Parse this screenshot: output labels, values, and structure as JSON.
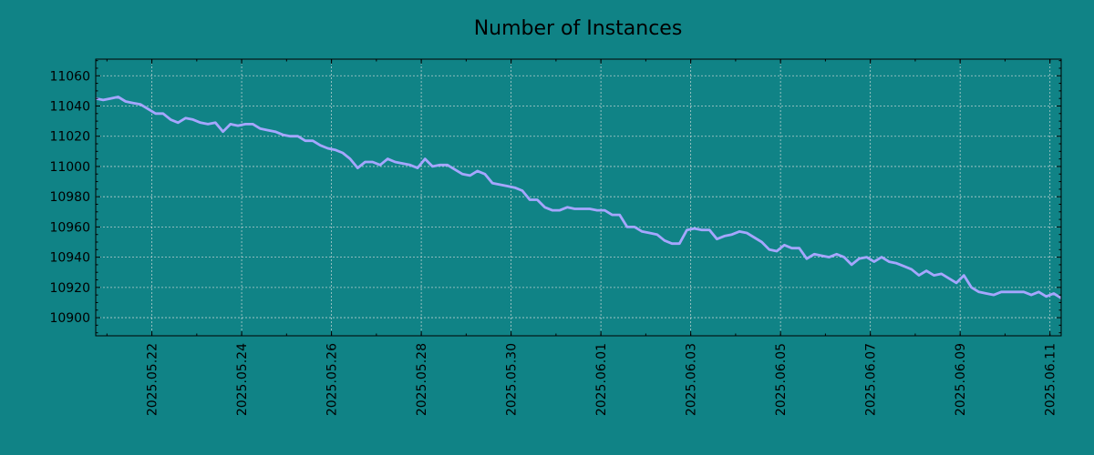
{
  "colors": {
    "background": "#108386",
    "line": "#a6a6ff",
    "grid": "#c8d6d6",
    "text": "#000000"
  },
  "chart_data": {
    "type": "line",
    "title": "Number of Instances",
    "xlabel": "",
    "ylabel": "",
    "x_axis": {
      "type": "date",
      "range": [
        "2025-05-20T18:00",
        "2025-06-11T06:00"
      ],
      "ticks": [
        "2025-05-22",
        "2025-05-24",
        "2025-05-26",
        "2025-05-28",
        "2025-05-30",
        "2025-06-01",
        "2025-06-03",
        "2025-06-05",
        "2025-06-07",
        "2025-06-09",
        "2025-06-11"
      ],
      "tick_labels": [
        "2025.05.22",
        "2025.05.24",
        "2025.05.26",
        "2025.05.28",
        "2025.05.30",
        "2025.06.01",
        "2025.06.03",
        "2025.06.05",
        "2025.06.07",
        "2025.06.09",
        "2025.06.11"
      ]
    },
    "y_axis": {
      "range": [
        10888,
        11071
      ],
      "ticks": [
        10900,
        10920,
        10940,
        10960,
        10980,
        11000,
        11020,
        11040,
        11060
      ],
      "tick_labels": [
        "10900",
        "10920",
        "10940",
        "10960",
        "10980",
        "11000",
        "11020",
        "11040",
        "11060"
      ]
    },
    "grid": true,
    "series": [
      {
        "color": "#a6a6ff",
        "points": [
          [
            "2025-05-20T18:00",
            11045
          ],
          [
            "2025-05-20T22:00",
            11044
          ],
          [
            "2025-05-21T02:00",
            11045
          ],
          [
            "2025-05-21T06:00",
            11046
          ],
          [
            "2025-05-21T10:00",
            11043
          ],
          [
            "2025-05-21T14:00",
            11042
          ],
          [
            "2025-05-21T18:00",
            11041
          ],
          [
            "2025-05-21T22:00",
            11038
          ],
          [
            "2025-05-22T02:00",
            11035
          ],
          [
            "2025-05-22T06:00",
            11035
          ],
          [
            "2025-05-22T10:00",
            11031
          ],
          [
            "2025-05-22T14:00",
            11029
          ],
          [
            "2025-05-22T18:00",
            11032
          ],
          [
            "2025-05-22T22:00",
            11031
          ],
          [
            "2025-05-23T02:00",
            11029
          ],
          [
            "2025-05-23T06:00",
            11028
          ],
          [
            "2025-05-23T10:00",
            11029
          ],
          [
            "2025-05-23T14:00",
            11023
          ],
          [
            "2025-05-23T18:00",
            11028
          ],
          [
            "2025-05-23T22:00",
            11027
          ],
          [
            "2025-05-24T02:00",
            11028
          ],
          [
            "2025-05-24T06:00",
            11028
          ],
          [
            "2025-05-24T10:00",
            11025
          ],
          [
            "2025-05-24T14:00",
            11024
          ],
          [
            "2025-05-24T18:00",
            11023
          ],
          [
            "2025-05-24T22:00",
            11021
          ],
          [
            "2025-05-25T02:00",
            11020
          ],
          [
            "2025-05-25T06:00",
            11020
          ],
          [
            "2025-05-25T10:00",
            11017
          ],
          [
            "2025-05-25T14:00",
            11017
          ],
          [
            "2025-05-25T18:00",
            11014
          ],
          [
            "2025-05-25T22:00",
            11012
          ],
          [
            "2025-05-26T02:00",
            11011
          ],
          [
            "2025-05-26T06:00",
            11009
          ],
          [
            "2025-05-26T10:00",
            11005
          ],
          [
            "2025-05-26T14:00",
            10999
          ],
          [
            "2025-05-26T18:00",
            11003
          ],
          [
            "2025-05-26T22:00",
            11003
          ],
          [
            "2025-05-27T02:00",
            11001
          ],
          [
            "2025-05-27T06:00",
            11005
          ],
          [
            "2025-05-27T10:00",
            11003
          ],
          [
            "2025-05-27T14:00",
            11002
          ],
          [
            "2025-05-27T18:00",
            11001
          ],
          [
            "2025-05-27T22:00",
            10999
          ],
          [
            "2025-05-28T02:00",
            11005
          ],
          [
            "2025-05-28T06:00",
            11000
          ],
          [
            "2025-05-28T10:00",
            11001
          ],
          [
            "2025-05-28T14:00",
            11001
          ],
          [
            "2025-05-28T18:00",
            10998
          ],
          [
            "2025-05-28T22:00",
            10995
          ],
          [
            "2025-05-29T02:00",
            10994
          ],
          [
            "2025-05-29T06:00",
            10997
          ],
          [
            "2025-05-29T10:00",
            10995
          ],
          [
            "2025-05-29T14:00",
            10989
          ],
          [
            "2025-05-29T18:00",
            10988
          ],
          [
            "2025-05-29T22:00",
            10987
          ],
          [
            "2025-05-30T02:00",
            10986
          ],
          [
            "2025-05-30T06:00",
            10984
          ],
          [
            "2025-05-30T10:00",
            10978
          ],
          [
            "2025-05-30T14:00",
            10978
          ],
          [
            "2025-05-30T18:00",
            10973
          ],
          [
            "2025-05-30T22:00",
            10971
          ],
          [
            "2025-05-31T02:00",
            10971
          ],
          [
            "2025-05-31T06:00",
            10973
          ],
          [
            "2025-05-31T10:00",
            10972
          ],
          [
            "2025-05-31T14:00",
            10972
          ],
          [
            "2025-05-31T18:00",
            10972
          ],
          [
            "2025-05-31T22:00",
            10971
          ],
          [
            "2025-06-01T02:00",
            10971
          ],
          [
            "2025-06-01T06:00",
            10968
          ],
          [
            "2025-06-01T10:00",
            10968
          ],
          [
            "2025-06-01T14:00",
            10960
          ],
          [
            "2025-06-01T18:00",
            10960
          ],
          [
            "2025-06-01T22:00",
            10957
          ],
          [
            "2025-06-02T02:00",
            10956
          ],
          [
            "2025-06-02T06:00",
            10955
          ],
          [
            "2025-06-02T10:00",
            10951
          ],
          [
            "2025-06-02T14:00",
            10949
          ],
          [
            "2025-06-02T18:00",
            10949
          ],
          [
            "2025-06-02T22:00",
            10958
          ],
          [
            "2025-06-03T02:00",
            10959
          ],
          [
            "2025-06-03T06:00",
            10958
          ],
          [
            "2025-06-03T10:00",
            10958
          ],
          [
            "2025-06-03T14:00",
            10952
          ],
          [
            "2025-06-03T18:00",
            10954
          ],
          [
            "2025-06-03T22:00",
            10955
          ],
          [
            "2025-06-04T02:00",
            10957
          ],
          [
            "2025-06-04T06:00",
            10956
          ],
          [
            "2025-06-04T10:00",
            10953
          ],
          [
            "2025-06-04T14:00",
            10950
          ],
          [
            "2025-06-04T18:00",
            10945
          ],
          [
            "2025-06-04T22:00",
            10944
          ],
          [
            "2025-06-05T02:00",
            10948
          ],
          [
            "2025-06-05T06:00",
            10946
          ],
          [
            "2025-06-05T10:00",
            10946
          ],
          [
            "2025-06-05T14:00",
            10939
          ],
          [
            "2025-06-05T18:00",
            10942
          ],
          [
            "2025-06-05T22:00",
            10941
          ],
          [
            "2025-06-06T02:00",
            10940
          ],
          [
            "2025-06-06T06:00",
            10942
          ],
          [
            "2025-06-06T10:00",
            10940
          ],
          [
            "2025-06-06T14:00",
            10935
          ],
          [
            "2025-06-06T18:00",
            10939
          ],
          [
            "2025-06-06T22:00",
            10940
          ],
          [
            "2025-06-07T02:00",
            10937
          ],
          [
            "2025-06-07T06:00",
            10940
          ],
          [
            "2025-06-07T10:00",
            10937
          ],
          [
            "2025-06-07T14:00",
            10936
          ],
          [
            "2025-06-07T18:00",
            10934
          ],
          [
            "2025-06-07T22:00",
            10932
          ],
          [
            "2025-06-08T02:00",
            10928
          ],
          [
            "2025-06-08T06:00",
            10931
          ],
          [
            "2025-06-08T10:00",
            10928
          ],
          [
            "2025-06-08T14:00",
            10929
          ],
          [
            "2025-06-08T18:00",
            10926
          ],
          [
            "2025-06-08T22:00",
            10923
          ],
          [
            "2025-06-09T02:00",
            10928
          ],
          [
            "2025-06-09T06:00",
            10920
          ],
          [
            "2025-06-09T10:00",
            10917
          ],
          [
            "2025-06-09T14:00",
            10916
          ],
          [
            "2025-06-09T18:00",
            10915
          ],
          [
            "2025-06-09T22:00",
            10917
          ],
          [
            "2025-06-10T02:00",
            10917
          ],
          [
            "2025-06-10T06:00",
            10917
          ],
          [
            "2025-06-10T10:00",
            10917
          ],
          [
            "2025-06-10T14:00",
            10915
          ],
          [
            "2025-06-10T18:00",
            10917
          ],
          [
            "2025-06-10T22:00",
            10914
          ],
          [
            "2025-06-11T02:00",
            10916
          ],
          [
            "2025-06-11T06:00",
            10913
          ]
        ]
      }
    ]
  }
}
